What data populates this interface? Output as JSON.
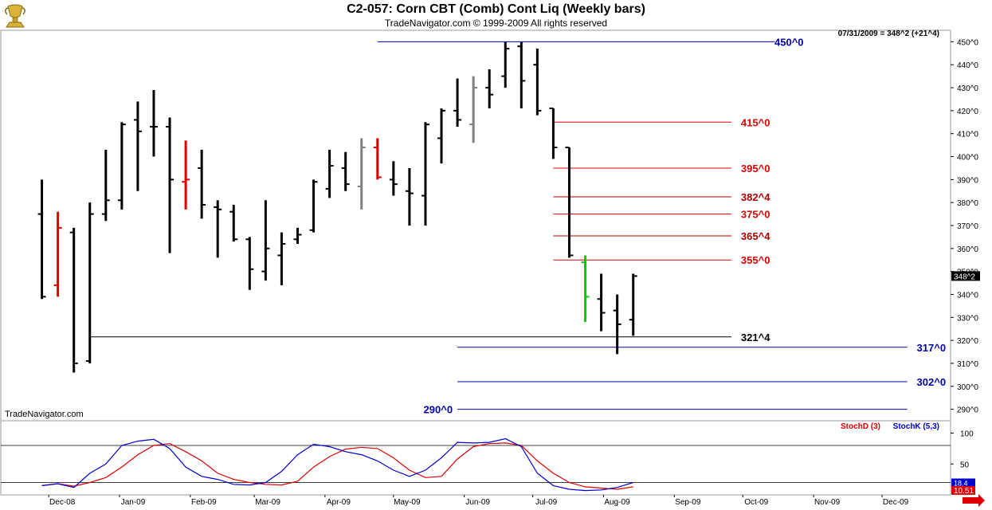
{
  "header": {
    "title": "C2-057:  Corn CBT (Comb) Cont Liq  (Weekly bars)",
    "copyright": "TradeNavigator.com © 1999-2009 All rights reserved",
    "readout": "07/31/2009 = 348^2 (+21^4)",
    "watermark": "TradeNavigator.com",
    "logo_icon": "gold-trophy-icon"
  },
  "chart_data": [
    {
      "type": "ohlc",
      "title": "C2-057:  Corn CBT (Comb) Cont Liq  (Weekly bars)",
      "ylim": [
        285,
        455
      ],
      "y_ticks": [
        290,
        300,
        310,
        320,
        330,
        340,
        350,
        360,
        370,
        380,
        390,
        400,
        410,
        420,
        430,
        440,
        450
      ],
      "y_tick_labels": [
        "290^0",
        "300^0",
        "310^0",
        "320^0",
        "330^0",
        "340^0",
        "350^0",
        "360^0",
        "370^0",
        "380^0",
        "390^0",
        "400^0",
        "410^0",
        "420^0",
        "430^0",
        "440^0",
        "450^0"
      ],
      "x_labels": [
        "Dec-08",
        "Jan-09",
        "Feb-09",
        "Mar-09",
        "Apr-09",
        "May-09",
        "Jun-09",
        "Jul-09",
        "Aug-09",
        "Sep-09",
        "Oct-09",
        "Nov-09",
        "Dec-09"
      ],
      "last_price_label": "348^2",
      "colors": {
        "normal": "#000000",
        "up_reversal": "#00cc00",
        "down_reversal": "#dd0000",
        "inside": "#808080"
      },
      "bars": [
        {
          "date": "2008-11-28",
          "o": 375,
          "h": 390,
          "l": 338,
          "c": 339,
          "color": "normal"
        },
        {
          "date": "2008-12-05",
          "o": 344,
          "h": 376,
          "l": 339,
          "c": 369,
          "color": "red"
        },
        {
          "date": "2008-12-12",
          "o": 367,
          "h": 369,
          "l": 306,
          "c": 310,
          "color": "normal"
        },
        {
          "date": "2008-12-19",
          "o": 311,
          "h": 380,
          "l": 310,
          "c": 375,
          "color": "normal"
        },
        {
          "date": "2008-12-26",
          "o": 375,
          "h": 403,
          "l": 372,
          "c": 381,
          "color": "normal"
        },
        {
          "date": "2009-01-02",
          "o": 381,
          "h": 415,
          "l": 377,
          "c": 414,
          "color": "normal"
        },
        {
          "date": "2009-01-09",
          "o": 416,
          "h": 424,
          "l": 385,
          "c": 411,
          "color": "normal"
        },
        {
          "date": "2009-01-16",
          "o": 413,
          "h": 429,
          "l": 400,
          "c": 413,
          "color": "normal"
        },
        {
          "date": "2009-01-23",
          "o": 413,
          "h": 417,
          "l": 358,
          "c": 390,
          "color": "normal"
        },
        {
          "date": "2009-01-30",
          "o": 389,
          "h": 407,
          "l": 377,
          "c": 390,
          "color": "red"
        },
        {
          "date": "2009-02-06",
          "o": 395,
          "h": 403,
          "l": 373,
          "c": 379,
          "color": "normal"
        },
        {
          "date": "2009-02-13",
          "o": 378,
          "h": 381,
          "l": 356,
          "c": 377,
          "color": "normal"
        },
        {
          "date": "2009-02-20",
          "o": 376,
          "h": 379,
          "l": 363,
          "c": 364,
          "color": "normal"
        },
        {
          "date": "2009-02-27",
          "o": 364,
          "h": 365,
          "l": 342,
          "c": 351,
          "color": "normal"
        },
        {
          "date": "2009-03-06",
          "o": 350,
          "h": 381,
          "l": 346,
          "c": 360,
          "color": "normal"
        },
        {
          "date": "2009-03-13",
          "o": 357,
          "h": 367,
          "l": 344,
          "c": 362,
          "color": "normal"
        },
        {
          "date": "2009-03-20",
          "o": 364,
          "h": 369,
          "l": 362,
          "c": 366,
          "color": "normal"
        },
        {
          "date": "2009-03-27",
          "o": 368,
          "h": 390,
          "l": 367,
          "c": 389,
          "color": "normal"
        },
        {
          "date": "2009-04-03",
          "o": 386,
          "h": 403,
          "l": 382,
          "c": 396,
          "color": "normal"
        },
        {
          "date": "2009-04-10",
          "o": 395,
          "h": 402,
          "l": 385,
          "c": 388,
          "color": "normal"
        },
        {
          "date": "2009-04-17",
          "o": 387,
          "h": 408,
          "l": 377,
          "c": 404,
          "color": "gray"
        },
        {
          "date": "2009-04-24",
          "o": 404,
          "h": 408,
          "l": 390,
          "c": 391,
          "color": "red"
        },
        {
          "date": "2009-05-01",
          "o": 390,
          "h": 398,
          "l": 383,
          "c": 388,
          "color": "normal"
        },
        {
          "date": "2009-05-08",
          "o": 385,
          "h": 395,
          "l": 370,
          "c": 384,
          "color": "normal"
        },
        {
          "date": "2009-05-15",
          "o": 383,
          "h": 415,
          "l": 370,
          "c": 414,
          "color": "normal"
        },
        {
          "date": "2009-05-22",
          "o": 408,
          "h": 421,
          "l": 397,
          "c": 420,
          "color": "normal"
        },
        {
          "date": "2009-05-29",
          "o": 420,
          "h": 434,
          "l": 413,
          "c": 416,
          "color": "normal"
        },
        {
          "date": "2009-06-05",
          "o": 414,
          "h": 435,
          "l": 406,
          "c": 430,
          "color": "gray"
        },
        {
          "date": "2009-06-12",
          "o": 430,
          "h": 438,
          "l": 421,
          "c": 427,
          "color": "normal"
        },
        {
          "date": "2009-06-19",
          "o": 435,
          "h": 450,
          "l": 430,
          "c": 447,
          "color": "normal"
        },
        {
          "date": "2009-06-26",
          "o": 448,
          "h": 450,
          "l": 421,
          "c": 433,
          "color": "normal"
        },
        {
          "date": "2009-07-03",
          "o": 440,
          "h": 447,
          "l": 418,
          "c": 420,
          "color": "normal"
        },
        {
          "date": "2009-07-10",
          "o": 421,
          "h": 421,
          "l": 399,
          "c": 404,
          "color": "normal"
        },
        {
          "date": "2009-07-17",
          "o": 404,
          "h": 404,
          "l": 356,
          "c": 357,
          "color": "normal"
        },
        {
          "date": "2009-07-24",
          "o": 354,
          "h": 357,
          "l": 328,
          "c": 339,
          "color": "green"
        },
        {
          "date": "2009-07-31",
          "o": 338,
          "h": 349,
          "l": 324,
          "c": 332,
          "color": "normal"
        },
        {
          "date": "2009-08-07",
          "o": 333,
          "h": 340,
          "l": 314,
          "c": 327,
          "color": "normal"
        },
        {
          "date": "2009-08-14",
          "o": 329,
          "h": 349,
          "l": 322,
          "c": 348,
          "color": "normal"
        }
      ],
      "levels": [
        {
          "value": 450,
          "label": "450^0",
          "color": "#0000aa",
          "from": "2009-04-24",
          "to": "2009-10-15"
        },
        {
          "value": 415,
          "label": "415^0",
          "color": "#dd0000",
          "from": "2009-07-10",
          "to": "2009-09-26"
        },
        {
          "value": 395,
          "label": "395^0",
          "color": "#dd0000",
          "from": "2009-07-10",
          "to": "2009-09-26"
        },
        {
          "value": 382.5,
          "label": "382^4",
          "color": "#aa0000",
          "from": "2009-07-10",
          "to": "2009-09-26"
        },
        {
          "value": 375,
          "label": "375^0",
          "color": "#dd0000",
          "from": "2009-07-10",
          "to": "2009-09-26"
        },
        {
          "value": 365.5,
          "label": "365^4",
          "color": "#aa0000",
          "from": "2009-07-10",
          "to": "2009-09-26"
        },
        {
          "value": 355,
          "label": "355^0",
          "color": "#dd0000",
          "from": "2009-07-10",
          "to": "2009-09-26"
        },
        {
          "value": 321.5,
          "label": "321^4",
          "color": "#000000",
          "from": "2008-12-19",
          "to": "2009-09-26"
        },
        {
          "value": 317,
          "label": "317^0",
          "color": "#0000aa",
          "from": "2009-05-29",
          "to": "2009-12-12"
        },
        {
          "value": 302,
          "label": "302^0",
          "color": "#0000aa",
          "from": "2009-05-29",
          "to": "2009-12-12"
        },
        {
          "value": 290,
          "label": "290^0",
          "color": "#0000aa",
          "from": "2009-05-29",
          "to": "2009-12-12"
        }
      ]
    },
    {
      "type": "line",
      "title": "",
      "ylim": [
        0,
        120
      ],
      "y_ticks": [
        50,
        100
      ],
      "reference_lines": [
        20,
        80
      ],
      "series": [
        {
          "name": "StochD (3)",
          "color": "#dd0000",
          "values": [
            15,
            18,
            14,
            20,
            28,
            45,
            65,
            80,
            83,
            70,
            55,
            35,
            25,
            20,
            17,
            16,
            22,
            45,
            62,
            74,
            77,
            75,
            60,
            40,
            28,
            30,
            58,
            78,
            83,
            84,
            80,
            55,
            35,
            20,
            13,
            11,
            9,
            13
          ]
        },
        {
          "name": "StochK (5,3)",
          "color": "#0000cc",
          "values": [
            15,
            18,
            12,
            35,
            50,
            80,
            87,
            90,
            75,
            45,
            30,
            25,
            17,
            16,
            20,
            38,
            65,
            82,
            78,
            70,
            65,
            55,
            40,
            30,
            40,
            60,
            85,
            84,
            85,
            91,
            78,
            35,
            15,
            9,
            7,
            8,
            12,
            20
          ]
        }
      ],
      "last_values": [
        "18.4",
        "10.51"
      ]
    }
  ]
}
